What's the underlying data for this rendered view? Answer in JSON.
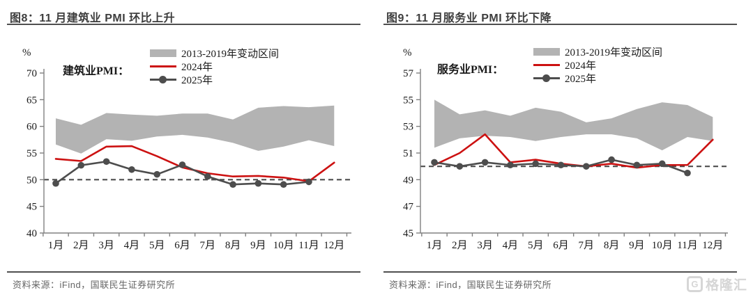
{
  "panels": [
    {
      "source": "资料来源：iFind，国联民生证券研究所"
    },
    {
      "source": "资料来源：iFind，国联民生证券研究所"
    }
  ],
  "watermark": {
    "logo": "G",
    "brand": "格隆汇"
  },
  "chart_data": [
    {
      "type": "line",
      "title": "图8：11 月建筑业 PMI 环比上升",
      "series_label": "建筑业PMI：",
      "unit": "%",
      "categories": [
        "1月",
        "2月",
        "3月",
        "4月",
        "5月",
        "6月",
        "7月",
        "8月",
        "9月",
        "10月",
        "11月",
        "12月"
      ],
      "ylim": [
        40,
        70
      ],
      "yticks": [
        40,
        45,
        50,
        55,
        60,
        65,
        70
      ],
      "reference_line": 50,
      "grid": false,
      "legend_position": "top",
      "legend": [
        "2013-2019年变动区间",
        "2024年",
        "2025年"
      ],
      "band": {
        "name": "2013-2019年变动区间",
        "color": "#b3b3b3",
        "upper": [
          61.5,
          60.3,
          62.5,
          62.2,
          62.0,
          62.4,
          62.4,
          61.3,
          63.5,
          63.8,
          63.6,
          63.9
        ],
        "lower": [
          56.6,
          54.9,
          57.6,
          57.3,
          58.1,
          58.4,
          57.9,
          56.9,
          55.4,
          56.2,
          57.4,
          56.3
        ]
      },
      "series": [
        {
          "name": "2024年",
          "color": "#cc1111",
          "markers": false,
          "values": [
            53.9,
            53.5,
            56.2,
            56.3,
            54.4,
            52.3,
            51.2,
            50.6,
            50.7,
            50.4,
            49.7,
            53.2
          ]
        },
        {
          "name": "2025年",
          "color": "#4d4d4d",
          "markers": true,
          "values": [
            49.3,
            52.7,
            53.4,
            51.9,
            51.0,
            52.8,
            50.6,
            49.1,
            49.3,
            49.1,
            49.6
          ]
        }
      ]
    },
    {
      "type": "line",
      "title": "图9：11 月服务业 PMI 环比下降",
      "series_label": "服务业PMI：",
      "unit": "%",
      "categories": [
        "1月",
        "2月",
        "3月",
        "4月",
        "5月",
        "6月",
        "7月",
        "8月",
        "9月",
        "10月",
        "11月",
        "12月"
      ],
      "ylim": [
        45,
        57
      ],
      "yticks": [
        45,
        47,
        49,
        51,
        53,
        55,
        57
      ],
      "reference_line": 50,
      "grid": false,
      "legend_position": "top",
      "legend": [
        "2013-2019年变动区间",
        "2024年",
        "2025年"
      ],
      "band": {
        "name": "2013-2019年变动区间",
        "color": "#b3b3b3",
        "upper": [
          55.0,
          53.9,
          54.2,
          53.8,
          54.4,
          54.1,
          53.3,
          53.6,
          54.3,
          54.8,
          54.6,
          53.7
        ],
        "lower": [
          51.4,
          52.1,
          52.3,
          52.2,
          51.9,
          52.2,
          52.4,
          52.4,
          52.1,
          51.2,
          52.2,
          51.9
        ]
      },
      "series": [
        {
          "name": "2024年",
          "color": "#cc1111",
          "markers": false,
          "values": [
            50.1,
            51.0,
            52.4,
            50.3,
            50.5,
            50.2,
            50.0,
            50.2,
            49.9,
            50.1,
            50.1,
            52.0
          ]
        },
        {
          "name": "2025年",
          "color": "#4d4d4d",
          "markers": true,
          "values": [
            50.3,
            50.0,
            50.3,
            50.1,
            50.2,
            50.1,
            50.0,
            50.5,
            50.1,
            50.2,
            49.5
          ]
        }
      ]
    }
  ]
}
